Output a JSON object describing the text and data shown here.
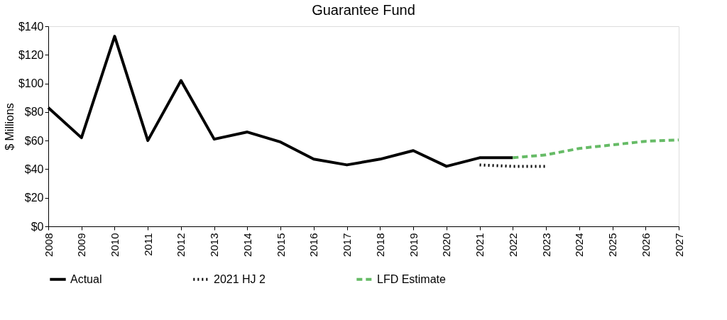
{
  "chart_data": {
    "type": "line",
    "title": "Guarantee Fund",
    "ylabel": "$ Millions",
    "categories": [
      "2008",
      "2009",
      "2010",
      "2011",
      "2012",
      "2013",
      "2014",
      "2015",
      "2016",
      "2017",
      "2018",
      "2019",
      "2020",
      "2021",
      "2022",
      "2023",
      "2024",
      "2025",
      "2026",
      "2027"
    ],
    "series": [
      {
        "name": "Actual",
        "color": "#000000",
        "line_style": "solid",
        "values": [
          83,
          62,
          133,
          60,
          102,
          61,
          66,
          59,
          47,
          43,
          47,
          53,
          42,
          48,
          48,
          null,
          null,
          null,
          null,
          null
        ]
      },
      {
        "name": "2021 HJ 2",
        "color": "#000000",
        "line_style": "dotted",
        "values": [
          null,
          null,
          null,
          null,
          null,
          null,
          null,
          null,
          null,
          null,
          null,
          null,
          null,
          43,
          42,
          42,
          null,
          null,
          null,
          null
        ]
      },
      {
        "name": "LFD Estimate",
        "color": "#66bb66",
        "line_style": "dashed",
        "values": [
          null,
          null,
          null,
          null,
          null,
          null,
          null,
          null,
          null,
          null,
          null,
          null,
          null,
          null,
          48,
          50,
          54.5,
          57,
          59.5,
          60.5
        ]
      }
    ],
    "ylim": [
      0,
      140
    ],
    "yticks": [
      {
        "value": 0,
        "label": "$0"
      },
      {
        "value": 20,
        "label": "$20"
      },
      {
        "value": 40,
        "label": "$40"
      },
      {
        "value": 60,
        "label": "$60"
      },
      {
        "value": 80,
        "label": "$80"
      },
      {
        "value": 100,
        "label": "$100"
      },
      {
        "value": 120,
        "label": "$120"
      },
      {
        "value": 140,
        "label": "$140"
      }
    ],
    "grid": false,
    "legend": "bottom",
    "marker": "none"
  }
}
